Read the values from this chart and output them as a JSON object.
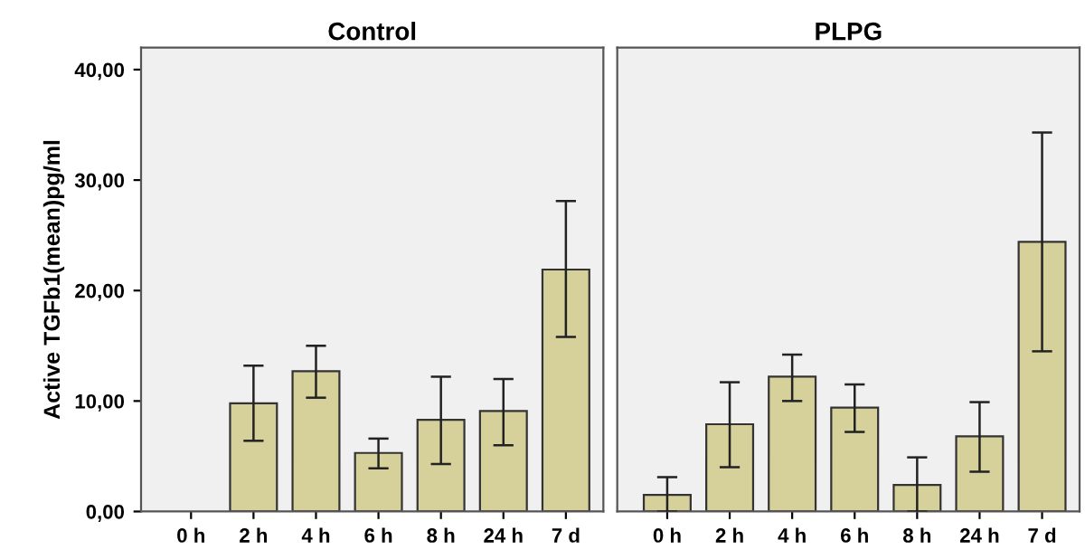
{
  "chart_data": [
    {
      "type": "bar",
      "title": "Control",
      "ylabel": "Active TGFb1(mean)pg/ml",
      "categories": [
        "0 h",
        "2 h",
        "4 h",
        "6 h",
        "8 h",
        "24 h",
        "7 d"
      ],
      "series": [
        {
          "color": "#d6d09b",
          "values": [
            null,
            9.8,
            12.7,
            5.3,
            8.3,
            9.1,
            21.9
          ],
          "errors": [
            null,
            [
              6.4,
              13.2
            ],
            [
              10.3,
              15.0
            ],
            [
              3.9,
              6.6
            ],
            [
              4.3,
              12.2
            ],
            [
              6.0,
              12.0
            ],
            [
              15.8,
              28.1
            ]
          ]
        }
      ],
      "ylim": [
        0,
        42
      ],
      "yticks": [
        {
          "value": 0,
          "label": "0,00"
        },
        {
          "value": 10,
          "label": "10,00"
        },
        {
          "value": 20,
          "label": "20,00"
        },
        {
          "value": 30,
          "label": "30,00"
        },
        {
          "value": 40,
          "label": "40,00"
        }
      ],
      "grid": false,
      "legend": false
    },
    {
      "type": "bar",
      "title": "PLPG",
      "categories": [
        "0 h",
        "2 h",
        "4 h",
        "6 h",
        "8 h",
        "24 h",
        "7 d"
      ],
      "series": [
        {
          "color": "#d6d09b",
          "values": [
            1.5,
            7.9,
            12.2,
            9.4,
            2.4,
            6.8,
            24.4
          ],
          "errors": [
            [
              0,
              3.1
            ],
            [
              4.0,
              11.7
            ],
            [
              10.0,
              14.2
            ],
            [
              7.2,
              11.5
            ],
            [
              0,
              4.9
            ],
            [
              3.6,
              9.9
            ],
            [
              14.5,
              34.3
            ]
          ]
        }
      ],
      "ylim": [
        0,
        42
      ],
      "tick_labels": "x",
      "grid": false,
      "legend": false
    }
  ]
}
